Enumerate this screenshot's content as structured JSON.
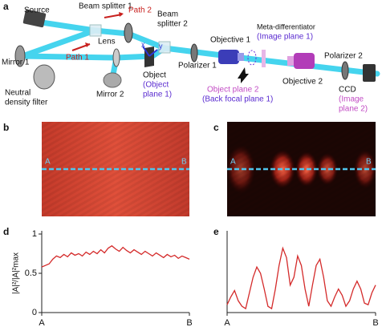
{
  "figure": {
    "panel_labels": [
      "a",
      "b",
      "c",
      "d",
      "e"
    ],
    "setup": {
      "source": "Source",
      "beam_splitter_1": "Beam splitter 1",
      "path_2": "Path 2",
      "beam_splitter_2": [
        "Beam",
        "splitter 2"
      ],
      "mirror_1": "Mirror 1",
      "lens": "Lens",
      "path_1": "Path 1",
      "axis_x": "x",
      "axis_y": "y",
      "object": [
        "Object",
        "(Object",
        "plane 1)"
      ],
      "neutral_density_filter": [
        "Neutral",
        "density filter"
      ],
      "mirror_2": "Mirror 2",
      "objective_1": "Objective 1",
      "polarizer_1": "Polarizer 1",
      "meta_differentiator": [
        "Meta-differentiator",
        "(Image plane 1)"
      ],
      "object_plane_2": [
        "Object plane 2",
        "(Back focal plane 1)"
      ],
      "objective_2": "Objective 2",
      "polarizer_2": "Polarizer 2",
      "ccd": [
        "CCD",
        "(Image",
        "plane 2)"
      ]
    },
    "images": [
      {
        "start": "A",
        "end": "B"
      },
      {
        "start": "A",
        "end": "B"
      }
    ]
  },
  "chart_data": [
    {
      "type": "line",
      "ylabel": "|A|²/|A|²max",
      "x": [
        0,
        0.025,
        0.05,
        0.075,
        0.1,
        0.125,
        0.15,
        0.175,
        0.2,
        0.225,
        0.25,
        0.275,
        0.3,
        0.325,
        0.35,
        0.375,
        0.4,
        0.425,
        0.45,
        0.475,
        0.5,
        0.525,
        0.55,
        0.575,
        0.6,
        0.625,
        0.65,
        0.675,
        0.7,
        0.725,
        0.75,
        0.775,
        0.8,
        0.825,
        0.85,
        0.875,
        0.9,
        0.925,
        0.95,
        0.975,
        1
      ],
      "series": [
        {
          "color": "#d42a2a",
          "values": [
            0.58,
            0.6,
            0.62,
            0.68,
            0.72,
            0.7,
            0.74,
            0.71,
            0.76,
            0.73,
            0.75,
            0.72,
            0.77,
            0.74,
            0.78,
            0.75,
            0.8,
            0.76,
            0.82,
            0.85,
            0.81,
            0.78,
            0.83,
            0.79,
            0.76,
            0.8,
            0.77,
            0.74,
            0.78,
            0.75,
            0.72,
            0.76,
            0.73,
            0.7,
            0.74,
            0.71,
            0.73,
            0.69,
            0.72,
            0.7,
            0.68
          ]
        }
      ],
      "xlim": [
        0,
        1
      ],
      "xticks": [
        {
          "value": 0,
          "label": "A"
        },
        {
          "value": 1,
          "label": "B"
        }
      ],
      "ylim": [
        0,
        1
      ],
      "yticks": [
        0,
        0.5,
        1
      ]
    },
    {
      "type": "line",
      "x": [
        0,
        0.025,
        0.05,
        0.075,
        0.1,
        0.125,
        0.15,
        0.175,
        0.2,
        0.225,
        0.25,
        0.275,
        0.3,
        0.325,
        0.35,
        0.375,
        0.4,
        0.425,
        0.45,
        0.475,
        0.5,
        0.525,
        0.55,
        0.575,
        0.6,
        0.625,
        0.65,
        0.675,
        0.7,
        0.725,
        0.75,
        0.775,
        0.8,
        0.825,
        0.85,
        0.875,
        0.9,
        0.925,
        0.95,
        0.975,
        1
      ],
      "series": [
        {
          "color": "#d42a2a",
          "values": [
            0.1,
            0.2,
            0.28,
            0.15,
            0.08,
            0.05,
            0.25,
            0.45,
            0.58,
            0.5,
            0.3,
            0.08,
            0.05,
            0.3,
            0.6,
            0.82,
            0.7,
            0.35,
            0.45,
            0.72,
            0.6,
            0.3,
            0.08,
            0.35,
            0.6,
            0.68,
            0.45,
            0.15,
            0.08,
            0.2,
            0.3,
            0.22,
            0.08,
            0.15,
            0.3,
            0.4,
            0.3,
            0.12,
            0.1,
            0.25,
            0.35
          ]
        }
      ],
      "xlim": [
        0,
        1
      ],
      "xticks": [
        {
          "value": 0,
          "label": "A"
        },
        {
          "value": 1,
          "label": "B"
        }
      ],
      "ylim": [
        0,
        1
      ]
    }
  ]
}
